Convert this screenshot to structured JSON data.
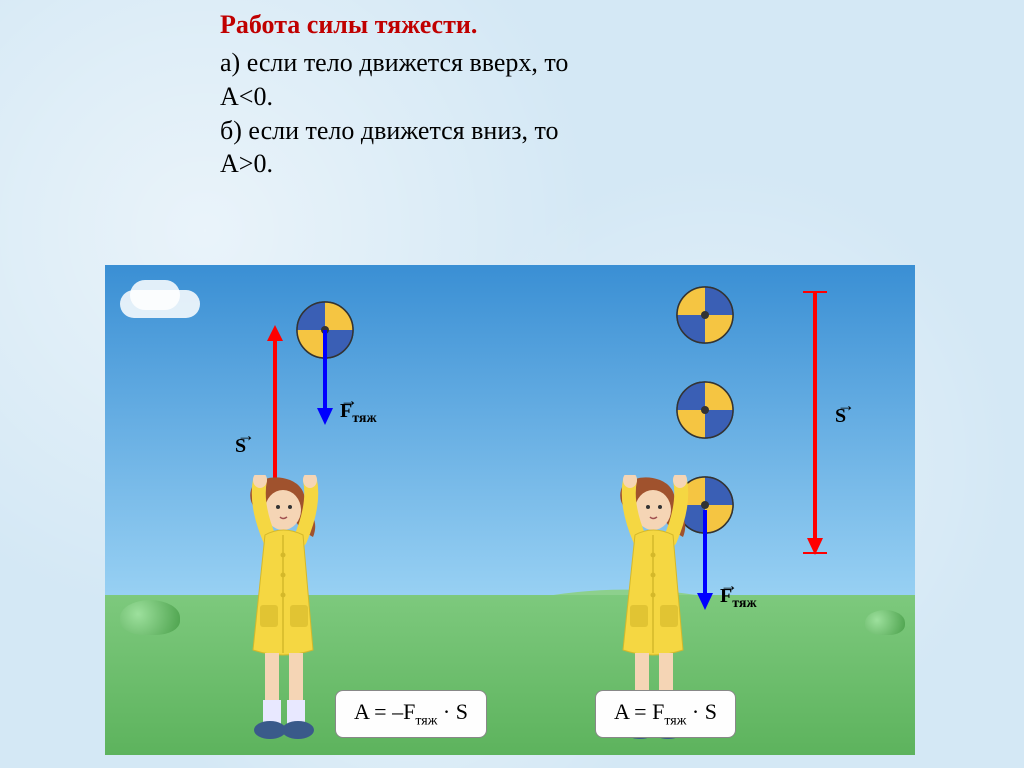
{
  "title": "Работа силы тяжести.",
  "lines": {
    "a": "а) если тело движется вверх, то",
    "a_ineq": "А<0.",
    "b": "б) если тело движется вниз, то",
    "b_ineq": "А>0."
  },
  "title_color": "#c00000",
  "text_color": "#000000",
  "diagram": {
    "sky_gradient_top": "#3a8fd4",
    "sky_gradient_bottom": "#9dd4f5",
    "ground_gradient_top": "#7dc97d",
    "ground_gradient_bottom": "#5db35d",
    "hill_color": "#8dd08d",
    "girl": {
      "coat_color": "#f5d742",
      "coat_shade": "#d4b82a",
      "hair_color": "#a0522d",
      "skin_color": "#f5d5b5",
      "sock_color": "#e8e8ff",
      "shoe_color": "#3a5a8a"
    },
    "ball_colors": {
      "a": "#f5c542",
      "b": "#3a5fb5",
      "c": "#f0f0f0",
      "outline": "#333"
    },
    "arrows": {
      "s_color": "#ff0000",
      "f_color": "#0000ff",
      "label_s": "S",
      "label_f_html": "F<span class=\"sub\">тяж</span>"
    },
    "formulas": {
      "left": "A = –F<span class=\"sub\">тяж</span> · S",
      "right": "A = F<span class=\"sub\">тяж</span> · S"
    },
    "bush_color": "#4aa04a",
    "cloud_color": "#ffffff"
  }
}
